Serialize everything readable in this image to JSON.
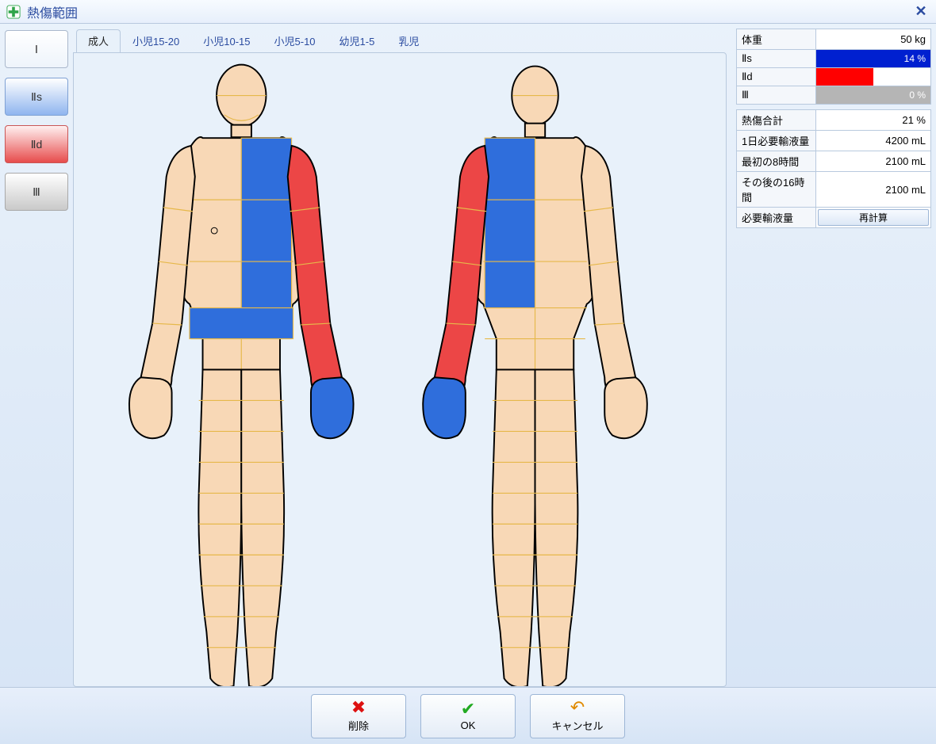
{
  "window": {
    "title": "熱傷範囲"
  },
  "degrees": [
    {
      "id": "I",
      "label": "Ⅰ",
      "css": "degree-I"
    },
    {
      "id": "IIs",
      "label": "Ⅱs",
      "css": "degree-IIs"
    },
    {
      "id": "IId",
      "label": "Ⅱd",
      "css": "degree-IId"
    },
    {
      "id": "III",
      "label": "Ⅲ",
      "css": "degree-III"
    }
  ],
  "tabs": [
    {
      "id": "adult",
      "label": "成人",
      "active": true
    },
    {
      "id": "c15-20",
      "label": "小児15-20",
      "active": false
    },
    {
      "id": "c10-15",
      "label": "小児10-15",
      "active": false
    },
    {
      "id": "c5-10",
      "label": "小児5-10",
      "active": false
    },
    {
      "id": "i1-5",
      "label": "幼児1-5",
      "active": false
    },
    {
      "id": "infant",
      "label": "乳児",
      "active": false
    }
  ],
  "summary": {
    "weight_label": "体重",
    "weight_value": "50 kg",
    "degree_bars": [
      {
        "id": "IIs",
        "label": "Ⅱs",
        "value": "14 %",
        "fraction": 1.0,
        "color": "#0020d0",
        "text_color": "#ffffff"
      },
      {
        "id": "IId",
        "label": "Ⅱd",
        "value": "7 %",
        "fraction": 0.5,
        "color": "#ff0000",
        "text_color": "#ffffff"
      },
      {
        "id": "III",
        "label": "Ⅲ",
        "value": "0 %",
        "fraction": 1.0,
        "color": "#b5b5b5",
        "text_color": "#ffffff"
      }
    ]
  },
  "calc": [
    {
      "label": "熱傷合計",
      "value": "21 %"
    },
    {
      "label": "1日必要輸液量",
      "value": "4200 mL"
    },
    {
      "label": "最初の8時間",
      "value": "2100 mL"
    },
    {
      "label": "その後の16時間",
      "value": "2100 mL"
    }
  ],
  "recalc": {
    "label": "必要輸液量",
    "button": "再計算"
  },
  "footer": {
    "delete": "削除",
    "ok": "OK",
    "cancel": "キャンセル"
  },
  "colors": {
    "skin": "#f8d8b6",
    "region_line": "#e6b84a",
    "IIs": "#2f6edc",
    "IId": "#ec4646",
    "panel_bg": "#e8f1fa"
  }
}
